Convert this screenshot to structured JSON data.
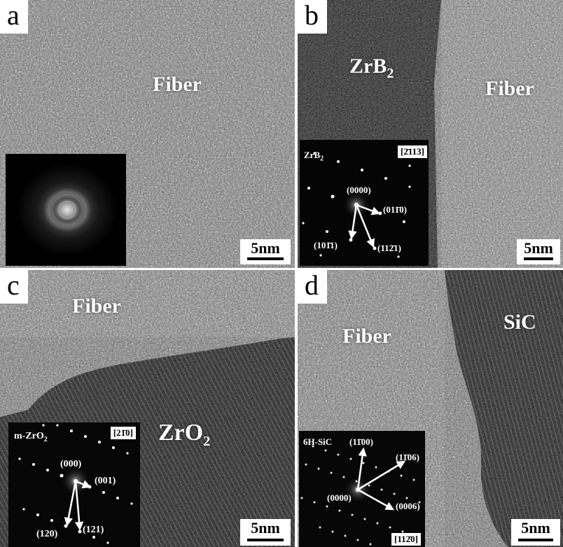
{
  "panels": {
    "a": {
      "letter": "a",
      "label": "Fiber",
      "scale": "5nm"
    },
    "b": {
      "letter": "b",
      "label_main": "ZrB",
      "label_sub": "2",
      "label_fiber": "Fiber",
      "scale": "5nm",
      "inset": {
        "phase": "ZrB",
        "phase_sub": "2",
        "zone_axis": "[2̄113]",
        "spots": [
          "(0000)",
          "(011̄0)",
          "(101̄1)",
          "(112̄1)"
        ]
      }
    },
    "c": {
      "letter": "c",
      "label_fiber": "Fiber",
      "label_main": "ZrO",
      "label_sub": "2",
      "scale": "5nm",
      "inset": {
        "phase": "m-ZrO",
        "phase_sub": "2",
        "zone_axis": "[21̄0]",
        "spots": [
          "(000)",
          "(001)",
          "(120)",
          "(121)"
        ]
      }
    },
    "d": {
      "letter": "d",
      "label_fiber": "Fiber",
      "label_main": "SiC",
      "scale": "5nm",
      "inset": {
        "phase": "6H-SiC",
        "zone_axis": "[112̄0]",
        "spots": [
          "(11̄00)",
          "(11̄06)",
          "(0000)",
          "(0006)"
        ]
      }
    }
  }
}
